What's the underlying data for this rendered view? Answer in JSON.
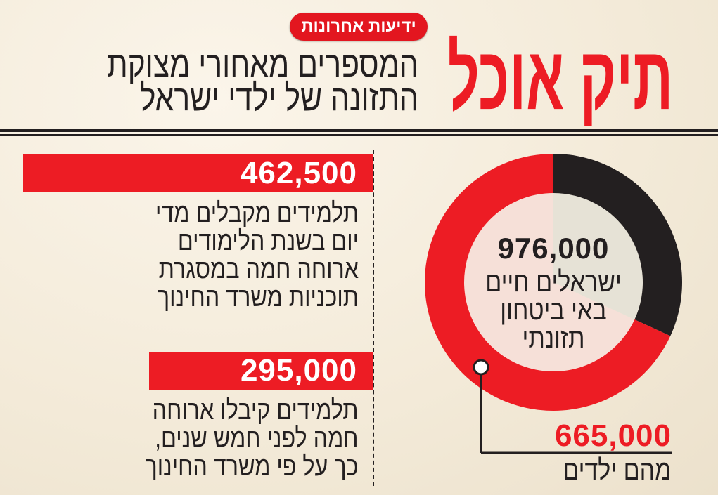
{
  "header": {
    "logo": "ידיעות אחרונות",
    "title": "תיק אוכל",
    "subtitle_lines": [
      "המספרים מאחורי מצוקת",
      "התזונה של ילדי ישראל"
    ]
  },
  "facts": [
    {
      "number": "462,500",
      "lines": [
        "תלמידים מקבלים מדי",
        "יום בשנת הלימודים",
        "ארוחה חמה במסגרת",
        "תוכניות משרד החינוך"
      ]
    },
    {
      "number": "295,000",
      "lines": [
        "תלמידים קיבלו ארוחה",
        "חמה לפני חמש שנים,",
        "כך על פי משרד החינוך"
      ]
    }
  ],
  "chart_data": {
    "type": "pie",
    "total_label": "976,000",
    "center_lines": [
      "ישראלים חיים",
      "באי ביטחון",
      "תזונתי"
    ],
    "total": 976000,
    "slices": [
      {
        "name": "children",
        "value": 665000,
        "color": "#ed1c24"
      },
      {
        "name": "adults",
        "value": 311000,
        "color": "#231f20"
      }
    ],
    "callout": {
      "number": "665,000",
      "label": "מהם ילדים"
    }
  }
}
